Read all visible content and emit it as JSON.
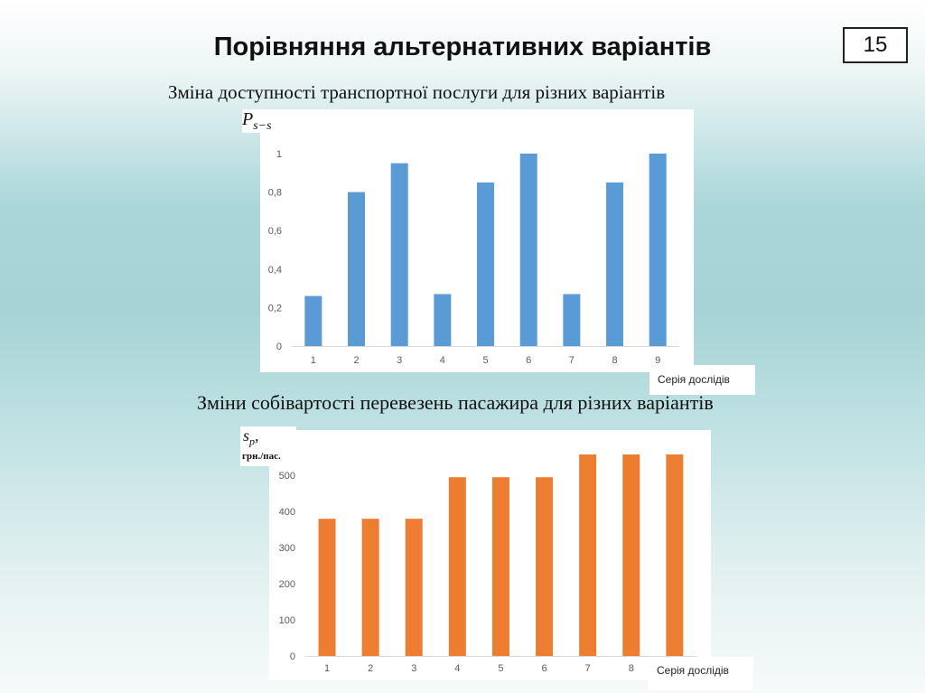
{
  "slide": {
    "title": "Порівняння альтернативних варіантів",
    "page_number": "15"
  },
  "chart1": {
    "subtitle": "Зміна доступності транспортної послуги для різних варіантів",
    "ylabel_main": "P",
    "ylabel_sub": "s−s",
    "legend": "Серія дослідів"
  },
  "chart2": {
    "subtitle": "Зміни собівартості перевезень пасажира для різних варіантів",
    "ylabel_main": "s",
    "ylabel_sub": "p",
    "ylabel_punct": ",",
    "ylabel_unit": "грн./пас.",
    "legend": "Серія дослідів"
  },
  "chart_data": [
    {
      "type": "bar",
      "title": "Зміна доступності транспортної послуги для різних варіантів",
      "xlabel": "",
      "ylabel": "Ps−s",
      "categories": [
        "1",
        "2",
        "3",
        "4",
        "5",
        "6",
        "7",
        "8",
        "9"
      ],
      "values": [
        0.26,
        0.8,
        0.95,
        0.27,
        0.85,
        1.0,
        0.27,
        0.85,
        1.0
      ],
      "y_ticks": [
        "0",
        "0,2",
        "0,4",
        "0,6",
        "0,8",
        "1"
      ],
      "y_tick_values": [
        0,
        0.2,
        0.4,
        0.6,
        0.8,
        1.0
      ],
      "ylim": [
        0,
        1.0
      ],
      "color": "#5b9bd5",
      "grid": false,
      "legend": "Серія дослідів"
    },
    {
      "type": "bar",
      "title": "Зміни собівартості перевезень пасажира для різних варіантів",
      "xlabel": "",
      "ylabel": "sp, грн./пас.",
      "categories": [
        "1",
        "2",
        "3",
        "4",
        "5",
        "6",
        "7",
        "8",
        ""
      ],
      "values": [
        380,
        380,
        380,
        495,
        495,
        495,
        558,
        558,
        558
      ],
      "y_ticks": [
        "0",
        "100",
        "200",
        "300",
        "400",
        "500"
      ],
      "y_tick_values": [
        0,
        100,
        200,
        300,
        400,
        500
      ],
      "ylim": [
        0,
        558
      ],
      "color": "#ed7d31",
      "grid": false,
      "legend": "Серія дослідів"
    }
  ]
}
